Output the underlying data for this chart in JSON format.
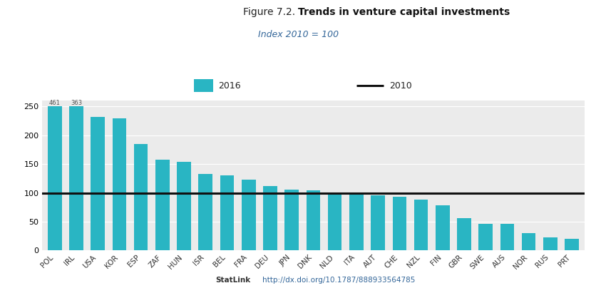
{
  "categories": [
    "POL",
    "IRL",
    "USA",
    "KOR",
    "ESP",
    "ZAF",
    "HUN",
    "ISR",
    "BEL",
    "FRA",
    "DEU",
    "JPN",
    "DNK",
    "NLD",
    "ITA",
    "AUT",
    "CHE",
    "NZL",
    "FIN",
    "GBR",
    "SWE",
    "AUS",
    "NOR",
    "RUS",
    "PRT"
  ],
  "values": [
    461,
    363,
    232,
    230,
    185,
    158,
    154,
    133,
    130,
    123,
    112,
    106,
    105,
    100,
    98,
    96,
    93,
    88,
    79,
    56,
    46,
    46,
    30,
    23,
    20
  ],
  "bar_color": "#29b5c3",
  "reference_line": 100,
  "reference_color": "#111111",
  "title_prefix": "Figure 7.2. ",
  "title_bold": "Trends in venture capital investments",
  "subtitle": "Index 2010 = 100",
  "subtitle_color": "#336699",
  "legend_bar_label": "2016",
  "legend_line_label": "2010",
  "ylim": [
    0,
    260
  ],
  "yticks": [
    0,
    50,
    100,
    150,
    200,
    250
  ],
  "fig_bg_color": "#ffffff",
  "plot_bg_color": "#ebebeb",
  "legend_bg_color": "#e0e0e0",
  "annotation_indices": [
    0,
    1
  ],
  "annotation_values": [
    461,
    363
  ],
  "grid_color": "#ffffff",
  "clip_bar_at": 250,
  "footer_left": "StatLink",
  "footer_right": "http://dx.doi.org/10.1787/888933564785",
  "footer_color": "#336699"
}
